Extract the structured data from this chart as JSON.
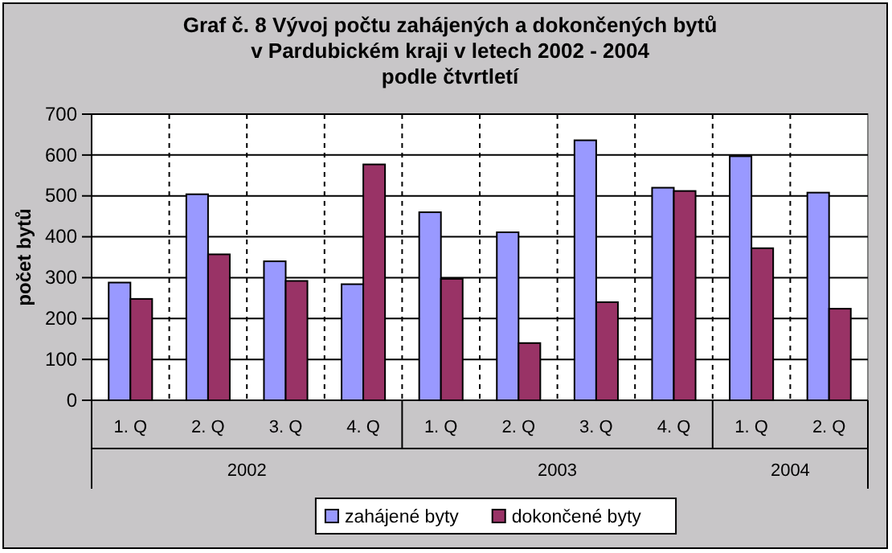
{
  "chart_data": {
    "type": "bar",
    "title": "Graf č. 8  Vývoj počtu zahájených a dokončených bytů\nv Pardubickém kraji v letech 2002 - 2004\npodle čtvrtletí",
    "ylabel": "počet bytů",
    "categories": [
      "1. Q",
      "2. Q",
      "3. Q",
      "4. Q",
      "1. Q",
      "2. Q",
      "3. Q",
      "4. Q",
      "1. Q",
      "2. Q"
    ],
    "annotations": [
      "2002",
      "2003",
      "2004"
    ],
    "series": [
      {
        "name": "zahájené byty",
        "color": "#9999ff",
        "values": [
          288,
          504,
          340,
          284,
          460,
          411,
          636,
          520,
          597,
          508
        ]
      },
      {
        "name": "dokončené byty",
        "color": "#993366",
        "values": [
          248,
          357,
          292,
          577,
          297,
          140,
          240,
          512,
          372,
          224
        ]
      }
    ],
    "ylim": [
      0,
      700
    ],
    "yticks": [
      0,
      100,
      200,
      300,
      400,
      500,
      600,
      700
    ],
    "grid": "y",
    "legend": "bottom"
  }
}
